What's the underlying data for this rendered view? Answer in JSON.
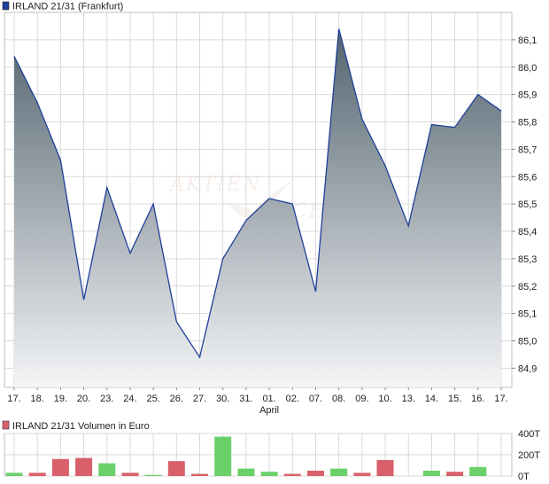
{
  "chart_data": [
    {
      "type": "area",
      "legend": {
        "label": "IRLAND 21/31 (Frankfurt)",
        "swatch_color": "#1f3f9a",
        "placement": "top-left"
      },
      "watermark": [
        "AKTIEN",
        "CHECK"
      ],
      "categories": [
        "17.",
        "18.",
        "19.",
        "20.",
        "23.",
        "24.",
        "25.",
        "26.",
        "27.",
        "30.",
        "31.",
        "01.",
        "02.",
        "07.",
        "08.",
        "09.",
        "10.",
        "13.",
        "14.",
        "15.",
        "16.",
        "17."
      ],
      "month_labels": [
        {
          "index": 11,
          "text": "April"
        }
      ],
      "series": [
        {
          "values": [
            86.04,
            85.87,
            85.66,
            85.15,
            85.56,
            85.32,
            85.5,
            85.07,
            84.94,
            85.3,
            85.44,
            85.52,
            85.5,
            85.18,
            86.14,
            85.81,
            85.64,
            85.42,
            85.79,
            85.78,
            85.9,
            85.84
          ],
          "line_color": "#1f3f9a",
          "fill_top_color": "#54646f",
          "fill_bottom_color": "#f4f5f7"
        }
      ],
      "y_ticks": [
        "84,9",
        "85,0",
        "85,1",
        "85,2",
        "85,3",
        "85,4",
        "85,5",
        "85,6",
        "85,7",
        "85,8",
        "85,9",
        "86,0",
        "86,1"
      ],
      "ylim": [
        84.83,
        86.2
      ],
      "y_axis_side": "right",
      "grid": true
    },
    {
      "type": "bar",
      "legend": {
        "label": "IRLAND 21/31 Volumen in Euro",
        "swatch_color": "#d9606a",
        "placement": "top-left"
      },
      "categories": [
        "17.",
        "18.",
        "19.",
        "20.",
        "23.",
        "24.",
        "25.",
        "26.",
        "27.",
        "30.",
        "31.",
        "01.",
        "02.",
        "07.",
        "08.",
        "09.",
        "10.",
        "13.",
        "14.",
        "15.",
        "16.",
        "17."
      ],
      "values": [
        30000,
        30000,
        160000,
        170000,
        120000,
        30000,
        10000,
        140000,
        20000,
        370000,
        70000,
        40000,
        20000,
        50000,
        70000,
        30000,
        150000,
        0,
        50000,
        40000,
        85000,
        0
      ],
      "directions": [
        "up",
        "down",
        "down",
        "down",
        "up",
        "down",
        "up",
        "down",
        "down",
        "up",
        "up",
        "up",
        "down",
        "down",
        "up",
        "down",
        "down",
        "down",
        "up",
        "down",
        "up",
        "down"
      ],
      "up_color": "#6ad06a",
      "down_color": "#d9606a",
      "y_ticks": [
        "0T",
        "200T",
        "400T"
      ],
      "ylim": [
        0,
        400000
      ],
      "y_axis_side": "right",
      "grid": true
    }
  ]
}
